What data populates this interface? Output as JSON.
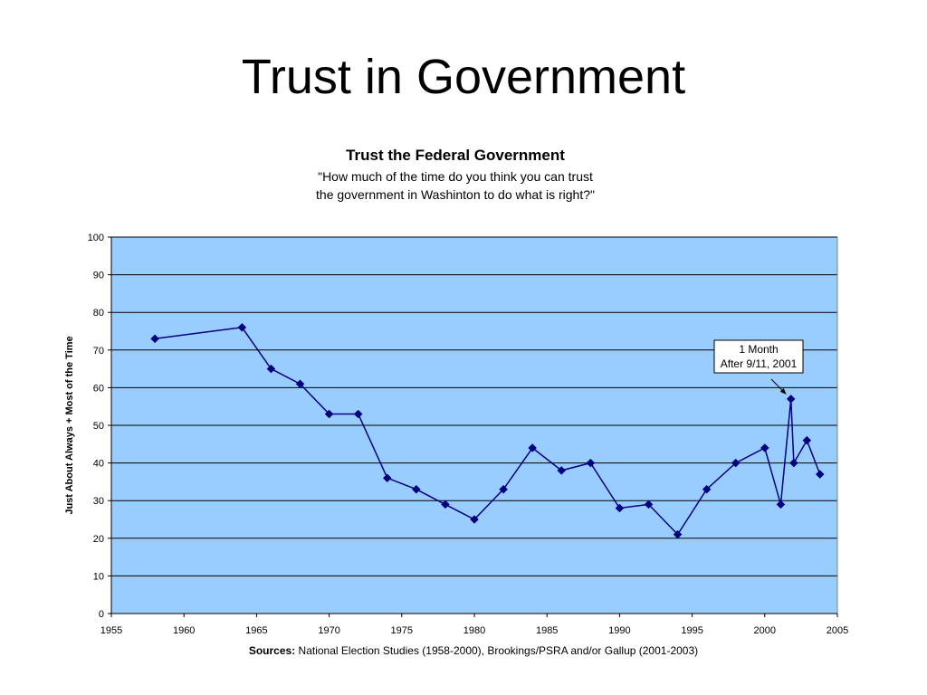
{
  "slide": {
    "title": "Trust in Government"
  },
  "chart_data": {
    "type": "line",
    "title": "Trust the Federal Government",
    "subtitle_lines": [
      "\"How much of the time do you think you can trust",
      "the government in Washinton to do what is right?\""
    ],
    "xlabel": "",
    "ylabel": "Just About Always + Most of the Time",
    "xlim": [
      1955,
      2005
    ],
    "ylim": [
      0,
      100
    ],
    "x_ticks": [
      1955,
      1960,
      1965,
      1970,
      1975,
      1980,
      1985,
      1990,
      1995,
      2000,
      2005
    ],
    "y_ticks": [
      0,
      10,
      20,
      30,
      40,
      50,
      60,
      70,
      80,
      90,
      100
    ],
    "grid": true,
    "series": [
      {
        "x": [
          1958,
          1964,
          1966,
          1968,
          1970,
          1972,
          1974,
          1976,
          1978,
          1980,
          1982,
          1984,
          1986,
          1988,
          1990,
          1992,
          1994,
          1996,
          1998,
          2000,
          2001.1,
          2001.8,
          2002,
          2002.9,
          2003.8
        ],
        "y": [
          73,
          76,
          65,
          61,
          53,
          53,
          36,
          33,
          29,
          25,
          33,
          44,
          38,
          40,
          28,
          29,
          21,
          33,
          40,
          44,
          29,
          57,
          40,
          46,
          37
        ]
      }
    ],
    "annotation": {
      "lines": [
        "1 Month",
        "After 9/11, 2001"
      ],
      "target_x": 2001.8,
      "target_y": 57
    },
    "source_label": "Sources:",
    "source_text": " National Election Studies (1958-2000), Brookings/PSRA and/or Gallup (2001-2003)",
    "colors": {
      "plot_background": "#99ccff",
      "line": "#000080",
      "grid": "#000000"
    }
  }
}
